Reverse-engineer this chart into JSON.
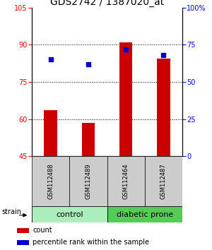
{
  "title": "GDS2742 / 1387020_at",
  "samples": [
    "GSM112488",
    "GSM112489",
    "GSM112464",
    "GSM112487"
  ],
  "bar_values": [
    63.5,
    58.5,
    91.0,
    84.5
  ],
  "bar_base": 45,
  "percentile_values": [
    65,
    62,
    72,
    68
  ],
  "ylim_left": [
    45,
    105
  ],
  "ylim_right": [
    0,
    100
  ],
  "yticks_left": [
    45,
    60,
    75,
    90,
    105
  ],
  "yticks_right": [
    0,
    25,
    50,
    75,
    100
  ],
  "bar_color": "#CC0000",
  "dot_color": "#0000CC",
  "bar_width": 0.35,
  "title_fontsize": 10,
  "tick_fontsize": 7,
  "legend_fontsize": 7,
  "group_label_fontsize": 8,
  "sample_fontsize": 6,
  "strain_fontsize": 7,
  "grid_ticks": [
    60,
    75,
    90
  ],
  "control_color": "#AAEEBB",
  "diabetic_color": "#55CC55",
  "sample_box_color": "#CCCCCC"
}
